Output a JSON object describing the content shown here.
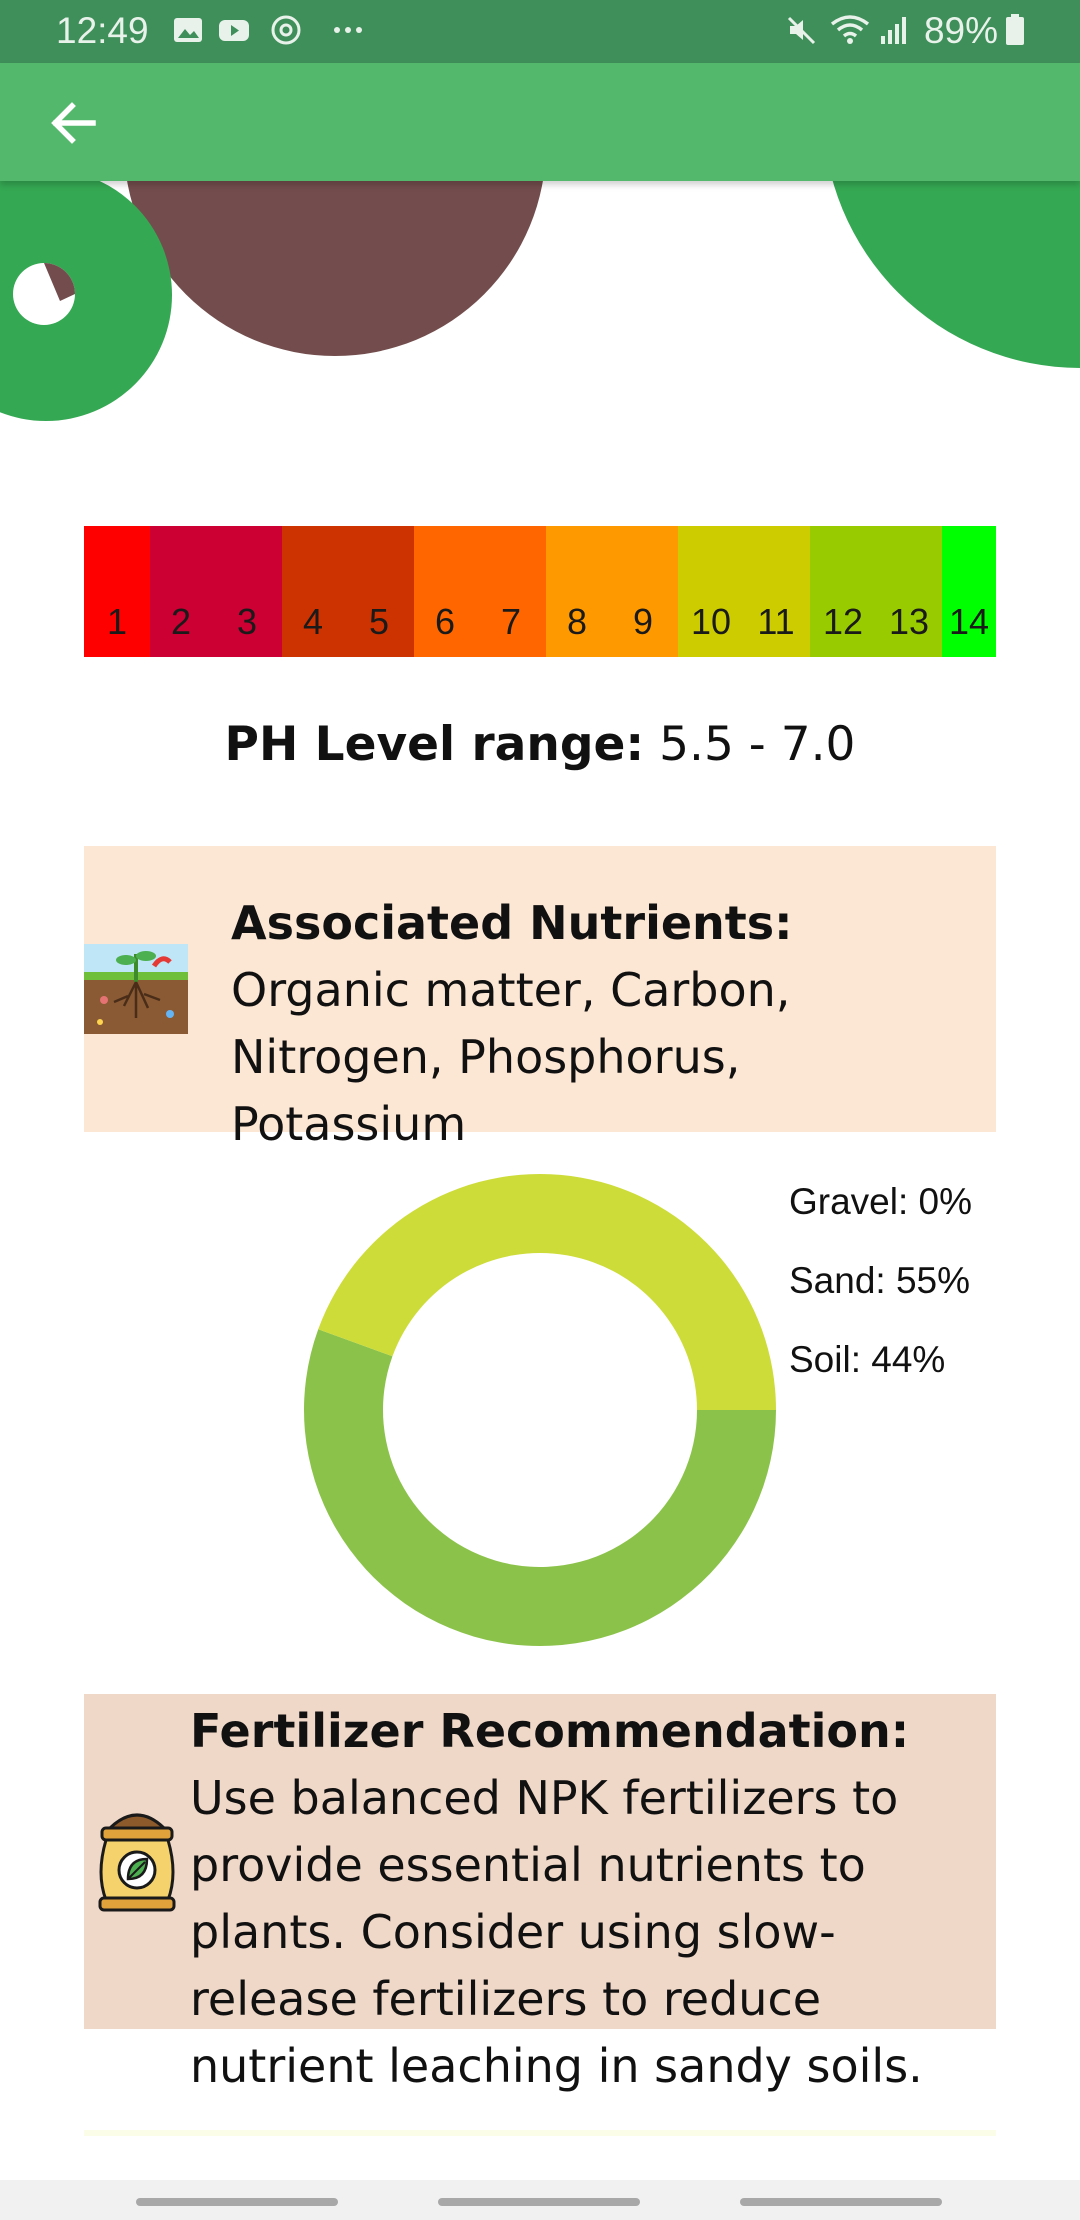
{
  "status_bar": {
    "time": "12:49",
    "left_icons": [
      "image-icon",
      "youtube-icon",
      "assistant-icon",
      "more-dots-icon"
    ],
    "right_icons": [
      "mute-icon",
      "wifi-icon",
      "signal-icon",
      "battery-icon"
    ],
    "battery": "89%"
  },
  "app_bar": {
    "back_icon": "arrow-left-icon",
    "color": "#53b86b"
  },
  "ph_scale": {
    "labels": [
      "1",
      "2",
      "3",
      "4",
      "5",
      "6",
      "7",
      "8",
      "9",
      "10",
      "11",
      "12",
      "13",
      "14"
    ],
    "colors": [
      "#ff0000",
      "#cc0033",
      "#cc0033",
      "#cc3300",
      "#cc3300",
      "#ff6600",
      "#ff6600",
      "#ff9900",
      "#ff9900",
      "#cccc00",
      "#cccc00",
      "#99cc00",
      "#99cc00",
      "#00ff00"
    ]
  },
  "ph_range": {
    "label": "PH Level range:",
    "value": "5.5 - 7.0"
  },
  "nutrients": {
    "label": "Associated Nutrients:",
    "value": "Organic matter, Carbon, Nitrogen, Phosphorus, Potassium",
    "background": "#fce6d4"
  },
  "composition": {
    "legend": [
      "Gravel: 0%",
      "Sand: 55%",
      "Soil: 44%"
    ],
    "chart_data": {
      "type": "pie",
      "categories": [
        "Gravel",
        "Sand",
        "Soil"
      ],
      "values": [
        0,
        55,
        44
      ],
      "colors": [
        "#cddc39",
        "#8bc34a",
        "#cddc39"
      ]
    }
  },
  "fertilizer": {
    "label": "Fertilizer Recommendation:",
    "value": "Use balanced NPK fertilizers to provide essential nutrients to plants. Consider using slow-release fertilizers to reduce nutrient leaching in sandy soils.",
    "background": "#f0d8c8"
  }
}
